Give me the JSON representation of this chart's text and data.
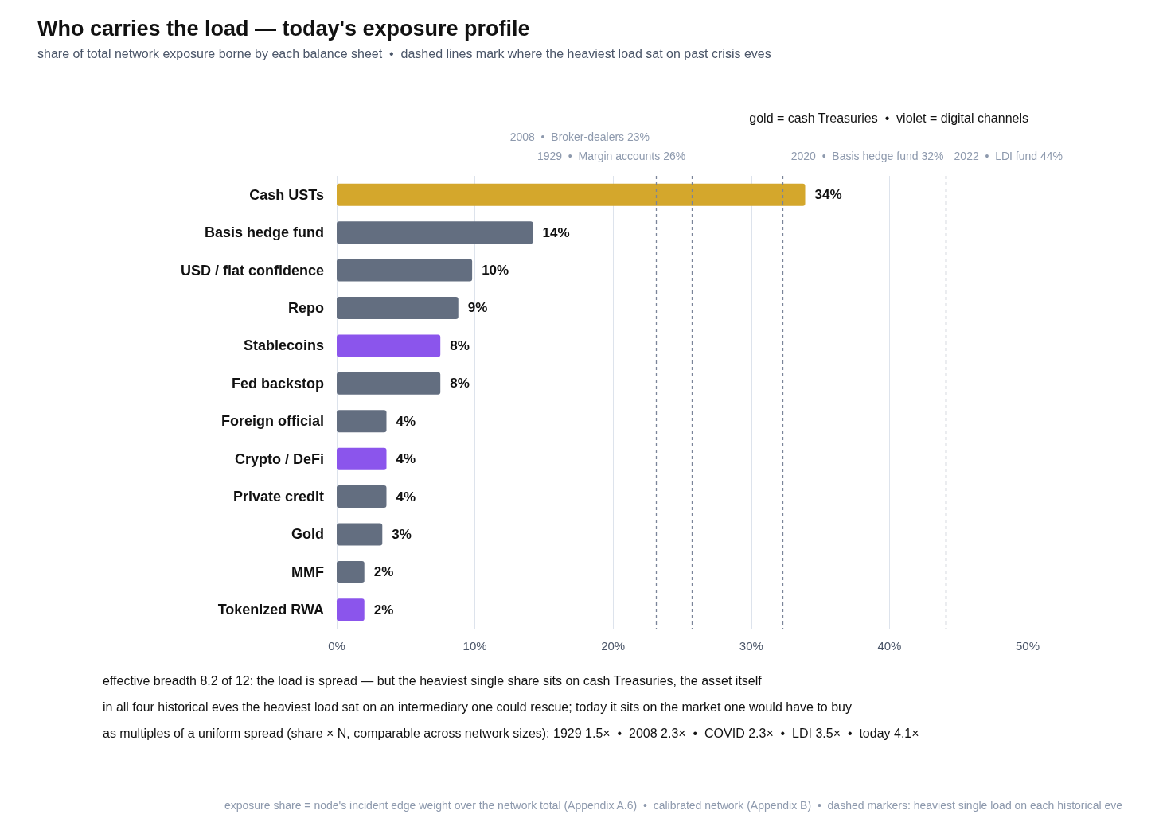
{
  "chart_data": {
    "type": "bar",
    "orientation": "horizontal",
    "title": "Who carries the load — today's exposure profile",
    "subtitle": "share of total network exposure borne by each balance sheet  •  dashed lines mark where the heaviest load sat on past crisis eves",
    "categories": [
      "Cash USTs",
      "Basis hedge fund",
      "USD / fiat confidence",
      "Repo",
      "Stablecoins",
      "Fed backstop",
      "Foreign official",
      "Crypto / DeFi",
      "Private credit",
      "Gold",
      "MMF",
      "Tokenized RWA"
    ],
    "values": [
      33.9,
      14.2,
      9.8,
      8.8,
      7.5,
      7.5,
      3.6,
      3.6,
      3.6,
      3.3,
      2.0,
      2.0
    ],
    "value_labels": [
      "34%",
      "14%",
      "10%",
      "9%",
      "8%",
      "8%",
      "4%",
      "4%",
      "4%",
      "3%",
      "2%",
      "2%"
    ],
    "colors": [
      "#d4a72c",
      "#636e80",
      "#636e80",
      "#636e80",
      "#8b55ec",
      "#636e80",
      "#636e80",
      "#8b55ec",
      "#636e80",
      "#636e80",
      "#636e80",
      "#8b55ec"
    ],
    "xlim": [
      0,
      50
    ],
    "xticks": [
      {
        "value": 0,
        "label": "0%"
      },
      {
        "value": 10,
        "label": "10%"
      },
      {
        "value": 20,
        "label": "20%"
      },
      {
        "value": 30,
        "label": "30%"
      },
      {
        "value": 40,
        "label": "40%"
      },
      {
        "value": 50,
        "label": "50%"
      }
    ],
    "grid": "x",
    "ref_lines": [
      {
        "axis": "x",
        "value": 23.1,
        "label": "2008  •  Broker-dealers 23%",
        "color": "#7a8499",
        "line_style": "dashed"
      },
      {
        "axis": "x",
        "value": 25.7,
        "label": "1929  •  Margin accounts 26%",
        "color": "#7a8499",
        "line_style": "dashed"
      },
      {
        "axis": "x",
        "value": 32.3,
        "label": "2020  •  Basis hedge fund 32%",
        "color": "#7a8499",
        "line_style": "dashed"
      },
      {
        "axis": "x",
        "value": 44.1,
        "label": "2022  •  LDI fund 44%",
        "color": "#7a8499",
        "line_style": "dashed"
      }
    ],
    "annotations": [
      "gold = cash Treasuries  •  violet = digital channels",
      "effective breadth 8.2 of 12: the load is spread — but the heaviest single share sits on cash Treasuries, the asset itself",
      "in all four historical eves the heaviest load sat on an intermediary one could rescue; today it sits on the market one would have to buy",
      "as multiples of a uniform spread (share × N, comparable across network sizes): 1929 1.5×  •  2008 2.3×  •  COVID 2.3×  •  LDI 3.5×  •  today 4.1×",
      "exposure share = node's incident edge weight over the network total (Appendix A.6)  •  calibrated network (Appendix B)  •  dashed markers: heaviest single load on each historical eve"
    ]
  }
}
